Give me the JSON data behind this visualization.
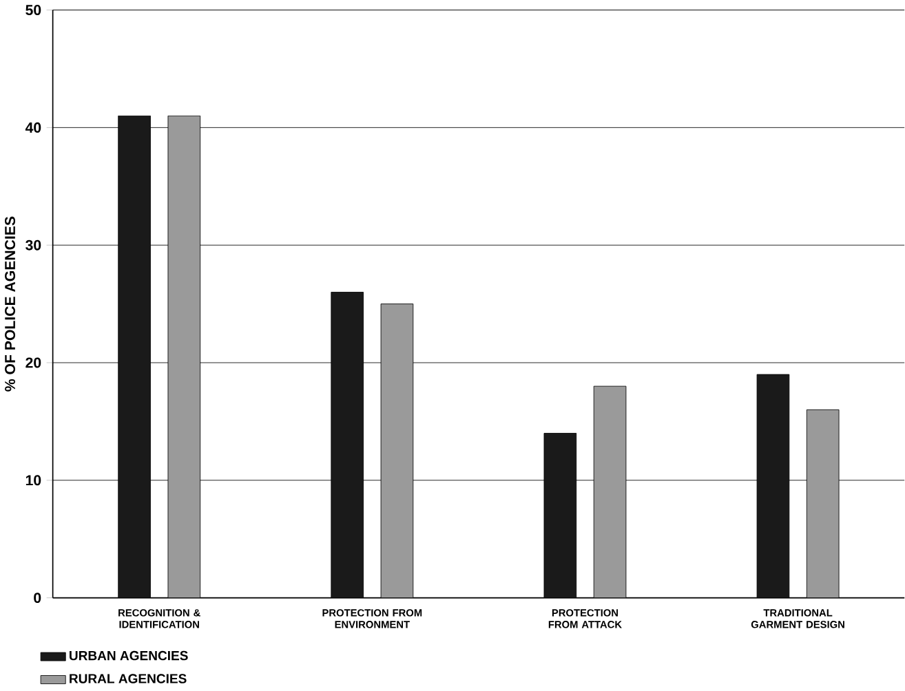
{
  "chart_data": {
    "type": "bar",
    "ylabel": "% OF POLICE AGENCIES",
    "categories": [
      "RECOGNITION & IDENTIFICATION",
      "PROTECTION FROM ENVIRONMENT",
      "PROTECTION FROM ATTACK",
      "TRADITIONAL GARMENT DESIGN"
    ],
    "series": [
      {
        "name": "URBAN AGENCIES",
        "color": "#1a1a1a",
        "values": [
          41,
          26,
          14,
          19
        ]
      },
      {
        "name": "RURAL AGENCIES",
        "color": "#9a9a9a",
        "values": [
          41,
          25,
          18,
          16
        ]
      }
    ],
    "ylim": [
      0,
      50
    ],
    "yticks": [
      0,
      10,
      20,
      30,
      40,
      50
    ],
    "grid": "y",
    "legend": "bottom left"
  }
}
